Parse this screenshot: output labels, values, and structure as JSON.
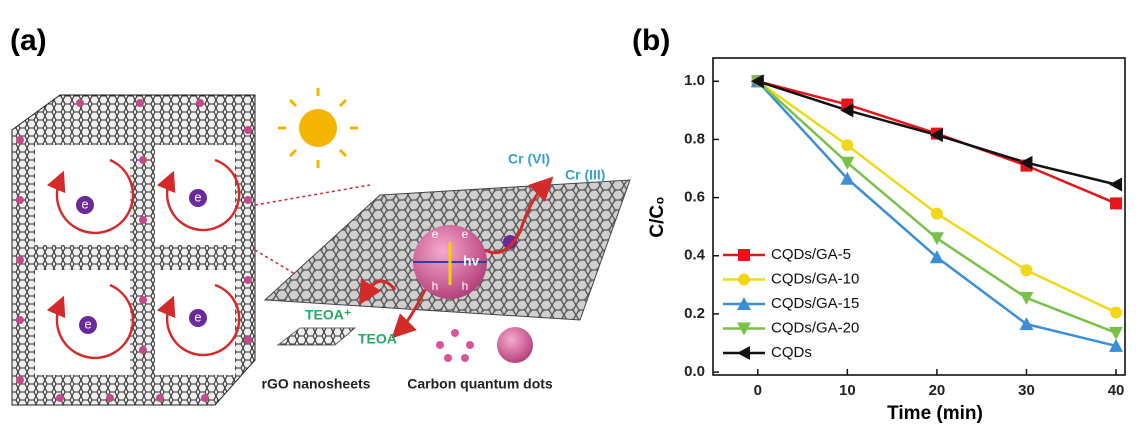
{
  "diagram": {
    "panel_label": "(a)",
    "electron": "e",
    "photon": "hv",
    "hole": "h",
    "cr6": "Cr (VI)",
    "cr3": "Cr (III)",
    "teoa_plus": "TEOA⁺",
    "teoa": "TEOA",
    "sheet_label": "rGO nanosheets",
    "dots_label": "Carbon quantum dots"
  },
  "chart_data": {
    "type": "line",
    "panel_label": "(b)",
    "xlabel": "Time (min)",
    "ylabel": "C/C₀",
    "x": [
      0,
      10,
      20,
      30,
      40
    ],
    "xlim": [
      -5,
      41
    ],
    "xticks": [
      0,
      10,
      20,
      30,
      40
    ],
    "ylim": [
      -0.01,
      1.08
    ],
    "yticks": [
      {
        "value": 0,
        "label": "0.0"
      },
      0.2,
      0.4,
      0.6,
      0.8,
      {
        "value": 1,
        "label": "1.0"
      }
    ],
    "legend": "lower left",
    "series": [
      {
        "name": "CQDs/GA-5",
        "color": "#e8141c",
        "marker": "square",
        "values": [
          1.0,
          0.92,
          0.82,
          0.71,
          0.58
        ]
      },
      {
        "name": "CQDs/GA-10",
        "color": "#f2d81a",
        "marker": "circle",
        "values": [
          1.0,
          0.78,
          0.545,
          0.35,
          0.205
        ]
      },
      {
        "name": "CQDs/GA-15",
        "color": "#3a8fd6",
        "marker": "triangle-up",
        "values": [
          1.0,
          0.665,
          0.395,
          0.165,
          0.09
        ]
      },
      {
        "name": "CQDs/GA-20",
        "color": "#79c24a",
        "marker": "triangle-down",
        "values": [
          1.0,
          0.72,
          0.46,
          0.255,
          0.135
        ]
      },
      {
        "name": "CQDs",
        "color": "#111111",
        "marker": "triangle-left",
        "values": [
          1.0,
          0.9,
          0.815,
          0.72,
          0.645
        ]
      }
    ]
  }
}
